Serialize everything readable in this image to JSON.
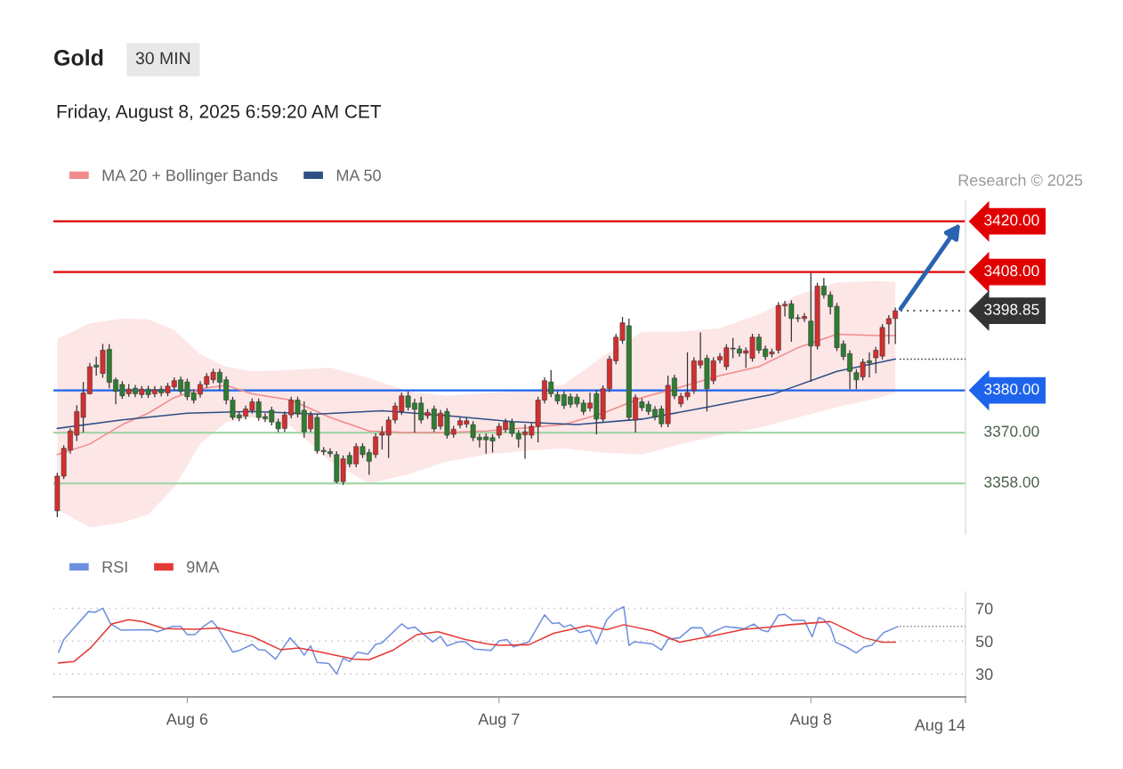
{
  "chart_data": [
    {
      "type": "candlestick",
      "title": "Gold",
      "subtitle": "Friday, August 8, 2025 6:59:20 AM CET",
      "annotations": [
        "30 MIN",
        "Research © 2025"
      ],
      "xlim": [
        "2025-08-05T13:42",
        "2025-08-08T11:54"
      ],
      "ylim": [
        3346,
        3425
      ],
      "tick_labels": false,
      "legend": "top left",
      "series": [
        {
          "type": "candlestick",
          "colors": [
            "#d32f2f",
            "#d32f2f",
            "#d32f2f",
            "#d32f2f",
            "#d32f2f",
            "#d32f2f",
            "#2e7d32",
            "#d32f2f",
            "#2e7d32",
            "#2e7d32",
            "#2e7d32",
            "#d32f2f",
            "#2e7d32",
            "#d32f2f",
            "#2e7d32",
            "#d32f2f",
            "#2e7d32",
            "#d32f2f",
            "#d32f2f",
            "#2e7d32",
            "#2e7d32",
            "#2e7d32",
            "#d32f2f",
            "#d32f2f",
            "#d32f2f",
            "#2e7d32",
            "#2e7d32",
            "#2e7d32",
            "#2e7d32",
            "#d32f2f",
            "#d32f2f",
            "#2e7d32",
            "#2e7d32",
            "#2e7d32",
            "#2e7d32",
            "#d32f2f",
            "#d32f2f",
            "#2e7d32",
            "#2e7d32",
            "#d32f2f",
            "#2e7d32",
            "#2e7d32",
            "#2e7d32",
            "#2e7d32",
            "#d32f2f",
            "#2e7d32",
            "#d32f2f",
            "#2e7d32",
            "#2e7d32",
            "#d32f2f",
            "#d32f2f",
            "#d32f2f",
            "#d32f2f",
            "#d32f2f",
            "#2e7d32",
            "#2e7d32",
            "#2e7d32",
            "#d32f2f",
            "#2e7d32",
            "#d32f2f",
            "#2e7d32",
            "#d32f2f",
            "#d32f2f",
            "#d32f2f",
            "#2e7d32",
            "#2e7d32",
            "#2e7d32",
            "#2e7d32",
            "#d32f2f",
            "#d32f2f",
            "#2e7d32",
            "#2e7d32",
            "#d32f2f",
            "#d32f2f",
            "#d32f2f",
            "#d32f2f",
            "#2e7d32",
            "#2e7d32",
            "#2e7d32",
            "#2e7d32",
            "#2e7d32",
            "#2e7d32",
            "#d32f2f",
            "#2e7d32",
            "#d32f2f",
            "#d32f2f",
            "#d32f2f",
            "#d32f2f",
            "#2e7d32",
            "#d32f2f",
            "#2e7d32",
            "#2e7d32",
            "#2e7d32",
            "#2e7d32",
            "#d32f2f",
            "#2e7d32",
            "#d32f2f",
            "#d32f2f",
            "#d32f2f",
            "#d32f2f",
            "#2e7d32",
            "#d32f2f",
            "#d32f2f",
            "#d32f2f",
            "#2e7d32",
            "#2e7d32",
            "#d32f2f",
            "#d32f2f",
            "#2e7d32",
            "#2e7d32",
            "#d32f2f",
            "#d32f2f",
            "#d32f2f",
            "#2e7d32",
            "#2e7d32",
            "#d32f2f",
            "#2e7d32",
            "#d32f2f",
            "#2e7d32",
            "#2e7d32",
            "#2e7d32",
            "#2e7d32",
            "#2e7d32",
            "#2e7d32",
            "#d32f2f",
            "#2e7d32",
            "#d32f2f",
            "#d32f2f",
            "#d32f2f",
            "#d32f2f"
          ],
          "x": [
            "2025-08-05T14:00",
            "2025-08-05T14:30",
            "2025-08-05T15:00",
            "2025-08-05T15:30",
            "2025-08-05T16:00",
            "2025-08-05T16:30",
            "2025-08-05T17:00",
            "2025-08-05T17:30",
            "2025-08-05T18:00",
            "2025-08-05T18:30",
            "2025-08-05T19:00",
            "2025-08-05T19:30",
            "2025-08-05T20:00",
            "2025-08-05T20:30",
            "2025-08-05T21:00",
            "2025-08-05T21:30",
            "2025-08-05T22:00",
            "2025-08-05T22:30",
            "2025-08-05T23:00",
            "2025-08-05T23:30",
            "2025-08-06T00:00",
            "2025-08-06T00:30",
            "2025-08-06T01:00",
            "2025-08-06T01:30",
            "2025-08-06T02:00",
            "2025-08-06T02:30",
            "2025-08-06T03:00",
            "2025-08-06T03:30",
            "2025-08-06T04:00",
            "2025-08-06T04:30",
            "2025-08-06T05:00",
            "2025-08-06T05:30",
            "2025-08-06T06:00",
            "2025-08-06T06:30",
            "2025-08-06T07:00",
            "2025-08-06T07:30",
            "2025-08-06T08:00",
            "2025-08-06T08:30",
            "2025-08-06T09:00",
            "2025-08-06T09:30",
            "2025-08-06T10:00",
            "2025-08-06T10:30",
            "2025-08-06T11:00",
            "2025-08-06T11:30",
            "2025-08-06T12:00",
            "2025-08-06T12:30",
            "2025-08-06T13:00",
            "2025-08-06T13:30",
            "2025-08-06T14:00",
            "2025-08-06T14:30",
            "2025-08-06T15:00",
            "2025-08-06T15:30",
            "2025-08-06T16:00",
            "2025-08-06T16:30",
            "2025-08-06T17:00",
            "2025-08-06T17:30",
            "2025-08-06T18:00",
            "2025-08-06T18:30",
            "2025-08-06T19:00",
            "2025-08-06T19:30",
            "2025-08-06T20:00",
            "2025-08-06T20:30",
            "2025-08-06T21:00",
            "2025-08-06T21:30",
            "2025-08-06T22:00",
            "2025-08-06T22:30",
            "2025-08-06T23:00",
            "2025-08-06T23:30",
            "2025-08-07T00:00",
            "2025-08-07T00:30",
            "2025-08-07T01:00",
            "2025-08-07T01:30",
            "2025-08-07T02:00",
            "2025-08-07T02:30",
            "2025-08-07T03:00",
            "2025-08-07T03:30",
            "2025-08-07T04:00",
            "2025-08-07T04:30",
            "2025-08-07T05:00",
            "2025-08-07T05:30",
            "2025-08-07T06:00",
            "2025-08-07T06:30",
            "2025-08-07T07:00",
            "2025-08-07T07:30",
            "2025-08-07T08:00",
            "2025-08-07T08:30",
            "2025-08-07T09:00",
            "2025-08-07T09:30",
            "2025-08-07T10:00",
            "2025-08-07T10:30",
            "2025-08-07T11:00",
            "2025-08-07T11:30",
            "2025-08-07T12:00",
            "2025-08-07T12:30",
            "2025-08-07T13:00",
            "2025-08-07T13:30",
            "2025-08-07T14:00",
            "2025-08-07T14:30",
            "2025-08-07T15:00",
            "2025-08-07T15:30",
            "2025-08-07T16:00",
            "2025-08-07T16:30",
            "2025-08-07T17:00",
            "2025-08-07T17:30",
            "2025-08-07T18:00",
            "2025-08-07T18:30",
            "2025-08-07T19:00",
            "2025-08-07T19:30",
            "2025-08-07T20:00",
            "2025-08-07T20:30",
            "2025-08-07T21:00",
            "2025-08-07T21:30",
            "2025-08-07T22:00",
            "2025-08-07T22:30",
            "2025-08-07T23:00",
            "2025-08-07T23:30",
            "2025-08-08T00:00",
            "2025-08-08T00:30",
            "2025-08-08T01:00",
            "2025-08-08T01:30",
            "2025-08-08T02:00",
            "2025-08-08T02:30",
            "2025-08-08T03:00",
            "2025-08-08T03:30",
            "2025-08-08T04:00",
            "2025-08-08T04:30",
            "2025-08-08T05:00",
            "2025-08-08T05:30",
            "2025-08-08T06:00",
            "2025-08-08T06:30"
          ],
          "ohlc": [
            [
              3351.5,
              3360.5,
              3350,
              3359.7
            ],
            [
              3359.7,
              3367,
              3359,
              3366.3
            ],
            [
              3365.9,
              3371,
              3365,
              3370.4
            ],
            [
              3369.4,
              3376.5,
              3368,
              3375
            ],
            [
              3373.6,
              3382,
              3370,
              3379.4
            ],
            [
              3379.2,
              3386.5,
              3379,
              3385.6
            ],
            [
              3386,
              3388,
              3383.5,
              3385.5
            ],
            [
              3384,
              3391,
              3383,
              3389.5
            ],
            [
              3389.7,
              3391,
              3380.5,
              3381.9
            ],
            [
              3382.5,
              3383,
              3376.7,
              3379.8
            ],
            [
              3381.4,
              3382.2,
              3378,
              3378.7
            ],
            [
              3379.2,
              3381.5,
              3378.5,
              3380.3
            ],
            [
              3380.5,
              3381.3,
              3378.4,
              3379.2
            ],
            [
              3379,
              3381,
              3378.2,
              3380.3
            ],
            [
              3380.3,
              3381.1,
              3378.2,
              3379
            ],
            [
              3379.2,
              3381,
              3378.4,
              3380.2
            ],
            [
              3380.3,
              3381.1,
              3378.6,
              3379.4
            ],
            [
              3379.4,
              3381.8,
              3378.6,
              3381
            ],
            [
              3380.8,
              3383.1,
              3380,
              3382.3
            ],
            [
              3382.5,
              3383.3,
              3379,
              3379.8
            ],
            [
              3382,
              3382.8,
              3377.7,
              3378.5
            ],
            [
              3379.4,
              3380.2,
              3376.9,
              3377.7
            ],
            [
              3379.1,
              3382.2,
              3378.3,
              3381.4
            ],
            [
              3381.4,
              3384.1,
              3380.6,
              3383.3
            ],
            [
              3382.5,
              3385.1,
              3381.7,
              3384.3
            ],
            [
              3384.3,
              3385.1,
              3380,
              3381.9
            ],
            [
              3382.5,
              3383.3,
              3376.7,
              3377.7
            ],
            [
              3377.7,
              3378.5,
              3373,
              3373.6
            ],
            [
              3374.2,
              3375,
              3372.7,
              3373.5
            ],
            [
              3373.9,
              3376.4,
              3373.1,
              3375.6
            ],
            [
              3375.3,
              3378.1,
              3374.5,
              3377.3
            ],
            [
              3377.3,
              3378.1,
              3372.8,
              3373.6
            ],
            [
              3373.8,
              3374.6,
              3372.5,
              3373.3
            ],
            [
              3375.3,
              3376.1,
              3371.7,
              3372.5
            ],
            [
              3372.5,
              3373.3,
              3370.1,
              3370.9
            ],
            [
              3371,
              3375,
              3370.2,
              3374.2
            ],
            [
              3374.2,
              3378.5,
              3373.4,
              3377.7
            ],
            [
              3377.7,
              3378.5,
              3373.6,
              3374.4
            ],
            [
              3375.3,
              3377.4,
              3368.8,
              3370.2
            ],
            [
              3370.9,
              3375,
              3370.1,
              3374.2
            ],
            [
              3373.6,
              3374.4,
              3365,
              3365.7
            ],
            [
              3365.8,
              3366.6,
              3364.7,
              3365.5
            ],
            [
              3365.5,
              3366.3,
              3364.2,
              3365
            ],
            [
              3364.8,
              3365.6,
              3358,
              3358.4
            ],
            [
              3358.4,
              3364.6,
              3357.6,
              3363.8
            ],
            [
              3364.6,
              3365.4,
              3361.8,
              3362.6
            ],
            [
              3362.6,
              3367.5,
              3361.8,
              3366.7
            ],
            [
              3366.7,
              3367.5,
              3364,
              3364.8
            ],
            [
              3365.3,
              3366.1,
              3360,
              3363.2
            ],
            [
              3364.8,
              3369.8,
              3364,
              3369
            ],
            [
              3369.4,
              3371.5,
              3366,
              3370
            ],
            [
              3369.4,
              3373.8,
              3364,
              3373
            ],
            [
              3373,
              3377.1,
              3372.2,
              3376.3
            ],
            [
              3375,
              3379.5,
              3374.2,
              3378.7
            ],
            [
              3378.7,
              3379.8,
              3375.2,
              3376
            ],
            [
              3377,
              3378,
              3370,
              3375.5
            ],
            [
              3377,
              3378.5,
              3372.2,
              3373
            ],
            [
              3374,
              3375.6,
              3373.2,
              3374.8
            ],
            [
              3375.6,
              3376.4,
              3370.1,
              3370.9
            ],
            [
              3371.5,
              3375.4,
              3370.7,
              3374.6
            ],
            [
              3375,
              3375.8,
              3368.6,
              3369.4
            ],
            [
              3369.6,
              3371.6,
              3368.8,
              3370.8
            ],
            [
              3371.8,
              3373.6,
              3371,
              3372.8
            ],
            [
              3372,
              3373.6,
              3371.2,
              3372.8
            ],
            [
              3371.9,
              3372.7,
              3368,
              3368.8
            ],
            [
              3368.9,
              3369.7,
              3366.5,
              3368.3
            ],
            [
              3369,
              3369.8,
              3365,
              3368.3
            ],
            [
              3368.8,
              3369.6,
              3365.3,
              3368
            ],
            [
              3369.4,
              3372.3,
              3368.6,
              3371.5
            ],
            [
              3370.8,
              3373.3,
              3370,
              3372.5
            ],
            [
              3372.5,
              3373.3,
              3369,
              3369.8
            ],
            [
              3369.8,
              3370.6,
              3366.5,
              3368.5
            ],
            [
              3369.5,
              3372,
              3363.8,
              3370.2
            ],
            [
              3369.4,
              3372.3,
              3368.6,
              3371.5
            ],
            [
              3371.5,
              3378.5,
              3367.7,
              3377.7
            ],
            [
              3377.7,
              3383.1,
              3376.9,
              3382.3
            ],
            [
              3382,
              3384.8,
              3378.4,
              3379.2
            ],
            [
              3379,
              3379.8,
              3376.7,
              3377.5
            ],
            [
              3379,
              3379.8,
              3375.6,
              3376.4
            ],
            [
              3378.5,
              3379.3,
              3375.9,
              3376.7
            ],
            [
              3378.4,
              3379.2,
              3376,
              3376.8
            ],
            [
              3377,
              3377.8,
              3374.2,
              3375
            ],
            [
              3375.8,
              3379.5,
              3375,
              3377
            ],
            [
              3379.2,
              3380,
              3369.6,
              3373.2
            ],
            [
              3373.2,
              3381.2,
              3372.4,
              3380.4
            ],
            [
              3380.4,
              3388.2,
              3379.6,
              3387.4
            ],
            [
              3387,
              3393.4,
              3386.2,
              3392.6
            ],
            [
              3391.8,
              3397.4,
              3391,
              3396
            ],
            [
              3395.3,
              3397,
              3372.8,
              3373.6
            ],
            [
              3373,
              3379,
              3370,
              3378.3
            ],
            [
              3377.3,
              3378.1,
              3375.1,
              3375.9
            ],
            [
              3376.7,
              3377.5,
              3374.2,
              3375
            ],
            [
              3375.5,
              3376.3,
              3372.9,
              3373.7
            ],
            [
              3375.6,
              3376.4,
              3371.3,
              3372.1
            ],
            [
              3372.1,
              3383.5,
              3371.3,
              3381.2
            ],
            [
              3382.9,
              3383.7,
              3377.9,
              3378.7
            ],
            [
              3376.8,
              3379.4,
              3376,
              3378.6
            ],
            [
              3378.5,
              3389,
              3377.7,
              3379.5
            ],
            [
              3380,
              3387.8,
              3379.2,
              3387
            ],
            [
              3386,
              3393.7,
              3385.2,
              3387
            ],
            [
              3387.6,
              3388.4,
              3375,
              3380.4
            ],
            [
              3382.3,
              3387.8,
              3381.5,
              3387
            ],
            [
              3387.2,
              3388.8,
              3386.4,
              3388
            ],
            [
              3385.6,
              3390.9,
              3384.8,
              3390.1
            ],
            [
              3390,
              3392.4,
              3387.6,
              3389.8
            ],
            [
              3389.8,
              3390.6,
              3388,
              3388.8
            ],
            [
              3388.8,
              3390.2,
              3385.3,
              3389.4
            ],
            [
              3387.6,
              3393.4,
              3386.8,
              3392.6
            ],
            [
              3392.6,
              3393.4,
              3388.7,
              3389.5
            ],
            [
              3389.8,
              3390.6,
              3387.2,
              3388
            ],
            [
              3388.6,
              3389.9,
              3387.8,
              3389.1
            ],
            [
              3389.5,
              3400.9,
              3388.7,
              3400.1
            ],
            [
              3400,
              3401.2,
              3397.5,
              3400.4
            ],
            [
              3400.5,
              3401.3,
              3391.5,
              3397
            ],
            [
              3397.2,
              3398,
              3396.2,
              3397
            ],
            [
              3397,
              3398.3,
              3396.2,
              3397.5
            ],
            [
              3396.4,
              3407.8,
              3382,
              3390.5
            ],
            [
              3390.5,
              3405.5,
              3389.7,
              3404.7
            ],
            [
              3404.7,
              3406.6,
              3401.8,
              3402.6
            ],
            [
              3402.6,
              3403.4,
              3398,
              3399.8
            ],
            [
              3399.9,
              3400.7,
              3389.3,
              3390.1
            ],
            [
              3391,
              3391.8,
              3387.2,
              3388
            ],
            [
              3388.7,
              3389.5,
              3380.3,
              3384.5
            ],
            [
              3384.2,
              3385,
              3380.3,
              3382.5
            ],
            [
              3383.2,
              3387.5,
              3382.4,
              3386.7
            ],
            [
              3387,
              3389,
              3383,
              3386.5
            ],
            [
              3387.7,
              3390.3,
              3384,
              3389.5
            ],
            [
              3388.1,
              3395.7,
              3387.3,
              3394.9
            ],
            [
              3395.7,
              3397.8,
              3391,
              3397
            ],
            [
              3397,
              3399.6,
              3391,
              3398.85
            ]
          ]
        },
        {
          "type": "line",
          "name": "MA 20 + Bollinger Bands",
          "color": "#f28b8b",
          "x": [
            "2025-08-05T14:00",
            "2025-08-05T16:30",
            "2025-08-05T19:00",
            "2025-08-05T21:00",
            "2025-08-05T23:00",
            "2025-08-06T01:00",
            "2025-08-06T03:00",
            "2025-08-06T05:00",
            "2025-08-06T08:00",
            "2025-08-06T11:00",
            "2025-08-06T14:00",
            "2025-08-06T17:00",
            "2025-08-06T20:00",
            "2025-08-06T23:00",
            "2025-08-07T02:00",
            "2025-08-07T05:00",
            "2025-08-07T08:00",
            "2025-08-07T11:00",
            "2025-08-07T14:00",
            "2025-08-07T17:00",
            "2025-08-07T20:00",
            "2025-08-07T23:00",
            "2025-08-08T02:00",
            "2025-08-08T05:00",
            "2025-08-08T06:30"
          ],
          "values": [
            3364.8,
            3367.3,
            3371.9,
            3374.6,
            3378.3,
            3380.4,
            3381.2,
            3379.2,
            3377.7,
            3373.6,
            3370.4,
            3370.0,
            3370.0,
            3370.4,
            3371.1,
            3371.9,
            3374.6,
            3378.3,
            3380.8,
            3383.5,
            3385.6,
            3390.1,
            3393.3,
            3393.0,
            3393.0
          ],
          "upper": [
            3392.2,
            3395.9,
            3397.0,
            3396.8,
            3394.3,
            3388.5,
            3385.6,
            3384.5,
            3384.8,
            3385.4,
            3382.9,
            3379.8,
            3378.7,
            3379.4,
            3379.8,
            3381.4,
            3388.1,
            3393.9,
            3393.9,
            3394.7,
            3398.0,
            3402.6,
            3405.5,
            3405.9,
            3405.7
          ],
          "lower": [
            3351.8,
            3347.6,
            3348.7,
            3350.7,
            3357.0,
            3367.3,
            3372.5,
            3373.6,
            3371.5,
            3363.2,
            3358.0,
            3360.1,
            3363.2,
            3364.8,
            3365.7,
            3366.3,
            3365.3,
            3364.8,
            3367.3,
            3369.4,
            3371.1,
            3373.6,
            3376.0,
            3378.1,
            3379.4
          ]
        },
        {
          "type": "line",
          "name": "MA 50",
          "color": "#2d4f86",
          "x": [
            "2025-08-05T14:00",
            "2025-08-05T19:00",
            "2025-08-06T00:00",
            "2025-08-06T05:00",
            "2025-08-06T10:00",
            "2025-08-06T15:00",
            "2025-08-06T20:00",
            "2025-08-07T01:00",
            "2025-08-07T06:00",
            "2025-08-07T11:00",
            "2025-08-07T16:00",
            "2025-08-07T21:00",
            "2025-08-08T02:00",
            "2025-08-08T06:30"
          ],
          "values": [
            3371,
            3373,
            3374.6,
            3375,
            3374.4,
            3375.2,
            3374,
            3372.6,
            3371.9,
            3373.2,
            3376,
            3379,
            3384.5,
            3387.4
          ]
        },
        {
          "type": "line",
          "color": "#333333",
          "line_style": "dotted",
          "x": [
            "2025-08-08T06:50",
            "2025-08-08T11:54"
          ],
          "values": [
            3387.4,
            3387.4
          ]
        }
      ],
      "ref_lines": [
        {
          "axis": "y",
          "value": 3420,
          "label": "3420.00",
          "color": "#e00000",
          "line_style": "solid"
        },
        {
          "axis": "y",
          "value": 3408,
          "label": "3408.00",
          "color": "#e00000",
          "line_style": "solid"
        },
        {
          "axis": "y",
          "value": 3398.85,
          "label": "3398.85",
          "color": "#333333",
          "line_style": "dotted"
        },
        {
          "axis": "y",
          "value": 3380,
          "label": "3380.00",
          "color": "#1e63ec",
          "line_style": "solid"
        },
        {
          "axis": "y",
          "value": 3370,
          "label": "3370.00",
          "color": "#a5d6a7",
          "line_style": "solid"
        },
        {
          "axis": "y",
          "value": 3358,
          "label": "3358.00",
          "color": "#a5d6a7",
          "line_style": "solid"
        }
      ]
    },
    {
      "type": "line",
      "xlim": [
        "2025-08-05T13:42",
        "2025-08-08T11:54"
      ],
      "ylim": [
        16,
        80
      ],
      "yticks": [
        30,
        50,
        70
      ],
      "xticks": [
        {
          "value": "2025-08-06",
          "label": "Aug 6"
        },
        {
          "value": "2025-08-07",
          "label": "Aug 7"
        },
        {
          "value": "2025-08-08",
          "label": "Aug 8"
        },
        {
          "value": "2025-08-08T11:54",
          "label": null
        }
      ],
      "annotations": [
        "Aug 14"
      ],
      "grid": "y",
      "legend": "top left",
      "series": [
        {
          "name": "RSI",
          "color": "#6f8fe0",
          "x": [
            "2025-08-05T14:06",
            "2025-08-05T14:30",
            "2025-08-05T16:24",
            "2025-08-05T16:54",
            "2025-08-05T17:30",
            "2025-08-05T18:06",
            "2025-08-05T18:54",
            "2025-08-05T21:12",
            "2025-08-05T21:42",
            "2025-08-05T22:54",
            "2025-08-05T23:30",
            "2025-08-06T00:00",
            "2025-08-06T00:36",
            "2025-08-06T01:12",
            "2025-08-06T01:54",
            "2025-08-06T02:24",
            "2025-08-06T03:30",
            "2025-08-06T04:00",
            "2025-08-06T05:00",
            "2025-08-06T05:30",
            "2025-08-06T06:00",
            "2025-08-06T06:48",
            "2025-08-06T07:54",
            "2025-08-06T08:36",
            "2025-08-06T09:00",
            "2025-08-06T09:30",
            "2025-08-06T10:00",
            "2025-08-06T10:54",
            "2025-08-06T11:30",
            "2025-08-06T12:00",
            "2025-08-06T12:30",
            "2025-08-06T13:06",
            "2025-08-06T13:54",
            "2025-08-06T14:30",
            "2025-08-06T15:00",
            "2025-08-06T16:30",
            "2025-08-06T17:00",
            "2025-08-06T17:30",
            "2025-08-06T18:54",
            "2025-08-06T19:30",
            "2025-08-06T20:00",
            "2025-08-06T20:54",
            "2025-08-06T21:24",
            "2025-08-06T22:06",
            "2025-08-06T23:24",
            "2025-08-07T00:00",
            "2025-08-07T00:36",
            "2025-08-07T01:06",
            "2025-08-07T02:18",
            "2025-08-07T03:30",
            "2025-08-07T04:06",
            "2025-08-07T04:36",
            "2025-08-07T05:00",
            "2025-08-07T05:30",
            "2025-08-07T06:12",
            "2025-08-07T07:00",
            "2025-08-07T07:30",
            "2025-08-07T08:18",
            "2025-08-07T08:54",
            "2025-08-07T09:36",
            "2025-08-07T10:00",
            "2025-08-07T10:24",
            "2025-08-07T11:48",
            "2025-08-07T12:30",
            "2025-08-07T13:00",
            "2025-08-07T13:54",
            "2025-08-07T14:48",
            "2025-08-07T15:36",
            "2025-08-07T16:00",
            "2025-08-07T16:30",
            "2025-08-07T17:24",
            "2025-08-07T18:18",
            "2025-08-07T18:54",
            "2025-08-07T19:36",
            "2025-08-07T20:12",
            "2025-08-07T20:42",
            "2025-08-07T21:30",
            "2025-08-07T22:00",
            "2025-08-07T22:36",
            "2025-08-07T23:30",
            "2025-08-08T00:06",
            "2025-08-08T00:36",
            "2025-08-08T01:00",
            "2025-08-08T01:30",
            "2025-08-08T01:54",
            "2025-08-08T02:42",
            "2025-08-08T03:30",
            "2025-08-08T04:06",
            "2025-08-08T04:42",
            "2025-08-08T05:36",
            "2025-08-08T06:42"
          ],
          "values": [
            43.3,
            51,
            68,
            67.5,
            70,
            60.5,
            56.7,
            57,
            55.7,
            59,
            59,
            54,
            54,
            58.6,
            62.4,
            57.6,
            43.3,
            44.3,
            48,
            44.7,
            44.5,
            39,
            52,
            46,
            41.4,
            47.1,
            37,
            36.3,
            30,
            39.5,
            37.6,
            43.3,
            42,
            48,
            49,
            60.5,
            57.6,
            58.6,
            49.6,
            52.9,
            47.1,
            49.6,
            49.6,
            45.2,
            44.3,
            50.2,
            51,
            46.5,
            49.6,
            66,
            60.7,
            61.2,
            58.5,
            60,
            55.2,
            56.7,
            48.3,
            63.1,
            68.1,
            71,
            47.4,
            49.6,
            48.3,
            44.6,
            51.1,
            52,
            58.1,
            58.1,
            53,
            55.7,
            58.9,
            58.1,
            57.6,
            60.4,
            56.7,
            55.7,
            65.9,
            66.3,
            62.6,
            62.6,
            52.6,
            64.4,
            63.1,
            58.5,
            49.3,
            46.5,
            42.8,
            46.5,
            47.4,
            55.2,
            58.9
          ]
        },
        {
          "name": "9MA",
          "color": "#e53935",
          "x": [
            "2025-08-05T14:06",
            "2025-08-05T15:18",
            "2025-08-05T16:36",
            "2025-08-05T18:12",
            "2025-08-05T19:30",
            "2025-08-05T20:36",
            "2025-08-05T22:12",
            "2025-08-06T00:36",
            "2025-08-06T02:24",
            "2025-08-06T05:00",
            "2025-08-06T07:12",
            "2025-08-06T08:36",
            "2025-08-06T10:18",
            "2025-08-06T12:48",
            "2025-08-06T14:00",
            "2025-08-06T15:48",
            "2025-08-06T17:42",
            "2025-08-06T19:18",
            "2025-08-06T21:24",
            "2025-08-06T23:06",
            "2025-08-07T00:00",
            "2025-08-07T02:18",
            "2025-08-07T04:12",
            "2025-08-07T06:48",
            "2025-08-07T08:18",
            "2025-08-07T09:36",
            "2025-08-07T11:48",
            "2025-08-07T13:54",
            "2025-08-07T16:30",
            "2025-08-07T18:54",
            "2025-08-07T20:42",
            "2025-08-07T22:24",
            "2025-08-08T01:30",
            "2025-08-08T04:06",
            "2025-08-08T05:30",
            "2025-08-08T06:30"
          ],
          "values": [
            36.7,
            37.6,
            46.2,
            60.5,
            63,
            61.8,
            57.6,
            57.2,
            58,
            52.9,
            44.7,
            45.8,
            43.3,
            39,
            38.6,
            44.3,
            54,
            55.7,
            51,
            48.3,
            47.4,
            47.8,
            54.8,
            59.4,
            57,
            60,
            56.3,
            49.3,
            53.3,
            57.2,
            58.5,
            60,
            61.9,
            52,
            49.3,
            49.3
          ]
        },
        {
          "color": "#888888",
          "line_style": "dotted",
          "x": [
            "2025-08-08T06:50",
            "2025-08-08T11:54"
          ],
          "values": [
            59,
            59
          ]
        }
      ]
    }
  ]
}
